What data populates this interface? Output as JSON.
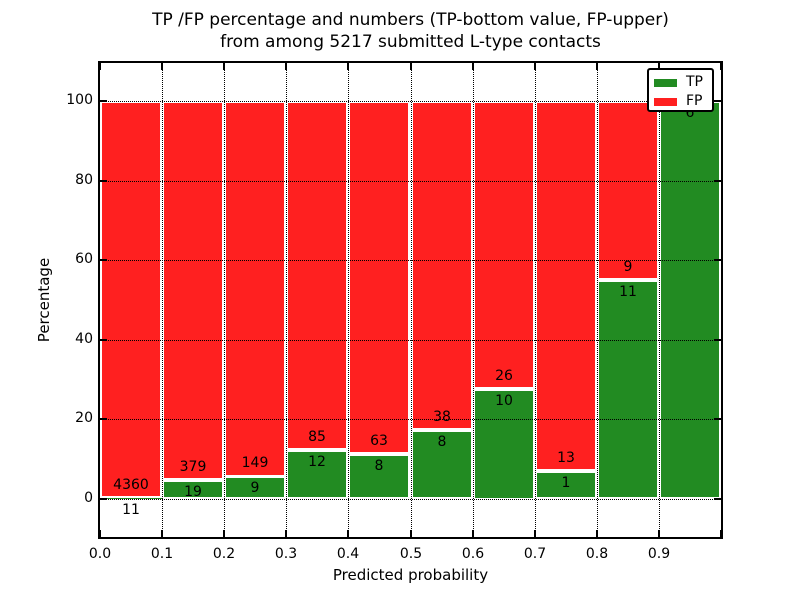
{
  "figure": {
    "title_line1": "TP /FP percentage and numbers (TP-bottom value, FP-upper)",
    "title_line2": "from among 5217 submitted L-type contacts",
    "xlabel": "Predicted probability",
    "ylabel": "Percentage"
  },
  "chart_data": {
    "type": "bar",
    "stacked": true,
    "bar_mode": "percent-of-bin-total",
    "title": "TP /FP percentage and numbers (TP-bottom value, FP-upper)\nfrom among 5217 submitted L-type contacts",
    "xlabel": "Predicted probability",
    "ylabel": "Percentage",
    "total_contacts": 5217,
    "xlim": [
      0.0,
      1.0
    ],
    "ylim": [
      -9.5,
      109.5
    ],
    "x_bin_edges": [
      0.0,
      0.1,
      0.2,
      0.3,
      0.4,
      0.5,
      0.6,
      0.7,
      0.8,
      0.9,
      1.0
    ],
    "xtick_labels": [
      "0.0",
      "0.1",
      "0.2",
      "0.3",
      "0.4",
      "0.5",
      "0.6",
      "0.7",
      "0.8",
      "0.9"
    ],
    "yticks": [
      0,
      20,
      40,
      60,
      80,
      100
    ],
    "grid": "dotted black, both axes, drawn over bars",
    "series": [
      {
        "name": "TP",
        "color": "#228b22",
        "position": "bottom",
        "counts": [
          11,
          19,
          9,
          12,
          8,
          8,
          10,
          1,
          11,
          6
        ]
      },
      {
        "name": "FP",
        "color": "#ff2020",
        "position": "top",
        "counts": [
          4360,
          379,
          149,
          85,
          63,
          38,
          26,
          13,
          9,
          0
        ]
      }
    ],
    "tp_percent_of_bin": [
      0.25,
      4.77,
      5.7,
      12.37,
      11.27,
      17.39,
      27.78,
      7.14,
      55.0,
      100.0
    ],
    "bar_edge_color": "#ffffff",
    "legend": {
      "position": "upper right",
      "entries": [
        "TP",
        "FP"
      ]
    },
    "notes": "Count labels printed per bar: FP count above the TP/FP boundary, TP count below it; last bar labels (FP 0, TP 6) partially hidden behind legend box"
  }
}
